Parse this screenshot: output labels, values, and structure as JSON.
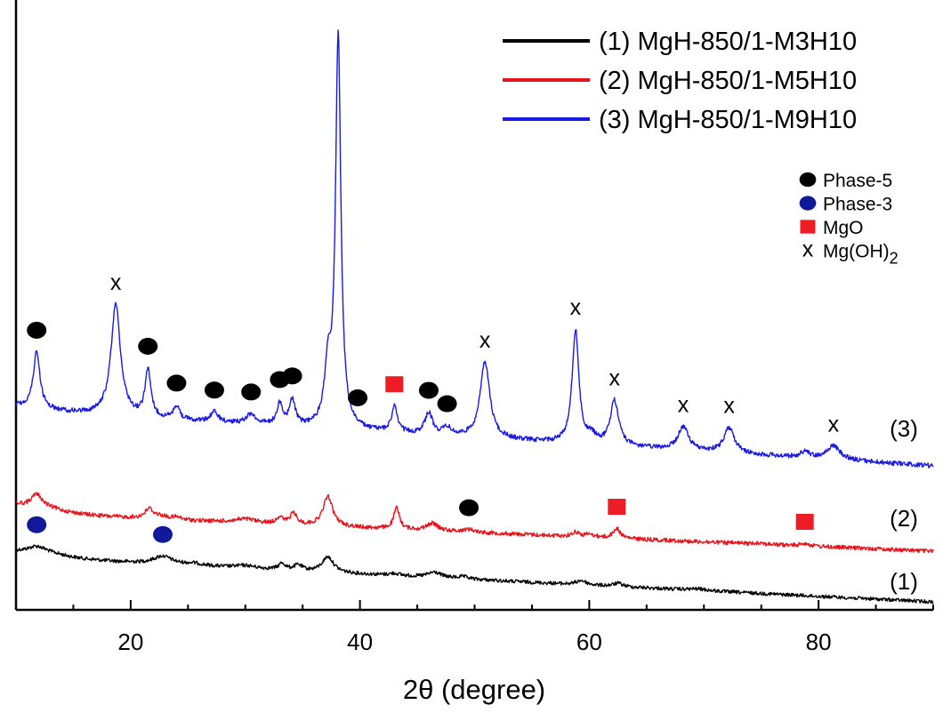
{
  "chart_data": {
    "type": "line",
    "title": "",
    "xlabel": "2θ (degree)",
    "ylabel": "",
    "xlim": [
      10,
      90
    ],
    "x_ticks": [
      20,
      40,
      60,
      80
    ],
    "x_minor_step": 5,
    "y_ticks_shown": false,
    "grid": false,
    "legend_placement": "top-right",
    "series": [
      {
        "name": "(1) MgH-850/1-M3H10",
        "label": "(1)",
        "color": "#000000",
        "peaks": [
          {
            "x": 11.8,
            "y": 6.5,
            "w": 1.0
          },
          {
            "x": 13.0,
            "y": 3.0,
            "w": 2.0
          },
          {
            "x": 22.8,
            "y": 7.5,
            "w": 1.0
          },
          {
            "x": 25.5,
            "y": 2.0,
            "w": 1.0
          },
          {
            "x": 30.0,
            "y": 2.5,
            "w": 1.2
          },
          {
            "x": 33.2,
            "y": 6.0,
            "w": 0.35
          },
          {
            "x": 34.6,
            "y": 5.0,
            "w": 0.45
          },
          {
            "x": 37.2,
            "y": 14.5,
            "w": 0.6
          },
          {
            "x": 43.0,
            "y": 2.0,
            "w": 0.6
          },
          {
            "x": 46.5,
            "y": 5.0,
            "w": 0.7
          },
          {
            "x": 49.0,
            "y": 2.0,
            "w": 0.6
          },
          {
            "x": 59.3,
            "y": 4.0,
            "w": 0.5
          },
          {
            "x": 62.5,
            "y": 3.0,
            "w": 0.5
          },
          {
            "x": 69.5,
            "y": 1.5,
            "w": 1.0
          }
        ]
      },
      {
        "name": "(2) MgH-850/1-M5H10",
        "label": "(2)",
        "color": "#e8131b",
        "peaks": [
          {
            "x": 11.8,
            "y": 12.0,
            "w": 0.6
          },
          {
            "x": 13.0,
            "y": 3.0,
            "w": 2.0
          },
          {
            "x": 21.6,
            "y": 8.0,
            "w": 0.4
          },
          {
            "x": 22.5,
            "y": 3.0,
            "w": 1.0
          },
          {
            "x": 24.0,
            "y": 2.0,
            "w": 0.4
          },
          {
            "x": 30.0,
            "y": 3.5,
            "w": 1.2
          },
          {
            "x": 33.0,
            "y": 6.0,
            "w": 0.35
          },
          {
            "x": 34.2,
            "y": 10.0,
            "w": 0.35
          },
          {
            "x": 37.2,
            "y": 27.0,
            "w": 0.5
          },
          {
            "x": 43.2,
            "y": 19.0,
            "w": 0.3
          },
          {
            "x": 46.3,
            "y": 6.5,
            "w": 0.6
          },
          {
            "x": 49.5,
            "y": 2.5,
            "w": 0.6
          },
          {
            "x": 58.8,
            "y": 4.0,
            "w": 0.35
          },
          {
            "x": 60.0,
            "y": 2.5,
            "w": 0.5
          },
          {
            "x": 62.4,
            "y": 9.0,
            "w": 0.35
          },
          {
            "x": 74.8,
            "y": 1.5,
            "w": 0.4
          },
          {
            "x": 78.8,
            "y": 2.5,
            "w": 0.45
          }
        ]
      },
      {
        "name": "(3) MgH-850/1-M9H10",
        "label": "(3)",
        "color": "#1a1ae6",
        "peaks": [
          {
            "x": 11.8,
            "y": 14.5,
            "w": 0.35
          },
          {
            "x": 18.7,
            "y": 28.5,
            "w": 0.5
          },
          {
            "x": 21.5,
            "y": 12.0,
            "w": 0.3
          },
          {
            "x": 24.0,
            "y": 3.5,
            "w": 0.3
          },
          {
            "x": 27.3,
            "y": 2.5,
            "w": 0.4
          },
          {
            "x": 30.5,
            "y": 2.5,
            "w": 0.5
          },
          {
            "x": 33.0,
            "y": 5.5,
            "w": 0.3
          },
          {
            "x": 34.1,
            "y": 6.5,
            "w": 0.3
          },
          {
            "x": 37.2,
            "y": 14.0,
            "w": 0.35
          },
          {
            "x": 38.1,
            "y": 100.0,
            "w": 0.28
          },
          {
            "x": 43.0,
            "y": 6.5,
            "w": 0.3
          },
          {
            "x": 46.0,
            "y": 5.5,
            "w": 0.4
          },
          {
            "x": 47.6,
            "y": 2.0,
            "w": 0.4
          },
          {
            "x": 50.9,
            "y": 19.5,
            "w": 0.5
          },
          {
            "x": 58.8,
            "y": 29.0,
            "w": 0.35
          },
          {
            "x": 60.2,
            "y": 2.0,
            "w": 0.4
          },
          {
            "x": 62.2,
            "y": 11.5,
            "w": 0.45
          },
          {
            "x": 68.2,
            "y": 6.0,
            "w": 0.55
          },
          {
            "x": 72.2,
            "y": 6.5,
            "w": 0.55
          },
          {
            "x": 78.8,
            "y": 1.5,
            "w": 0.5
          },
          {
            "x": 81.3,
            "y": 3.5,
            "w": 0.7
          }
        ]
      }
    ],
    "phase_legend": [
      {
        "symbol": "black-circle",
        "label": "Phase-5"
      },
      {
        "symbol": "blue-circle",
        "label": "Phase-3"
      },
      {
        "symbol": "red-square",
        "label": "MgO"
      },
      {
        "symbol": "x",
        "label": "Mg(OH)",
        "subscript": "2"
      }
    ],
    "annotations": [
      {
        "symbol": "black-circle",
        "series": 3,
        "x": 11.8
      },
      {
        "symbol": "black-circle",
        "series": 3,
        "x": 21.5
      },
      {
        "symbol": "black-circle",
        "series": 3,
        "x": 24.0
      },
      {
        "symbol": "black-circle",
        "series": 3,
        "x": 27.3
      },
      {
        "symbol": "black-circle",
        "series": 3,
        "x": 30.5
      },
      {
        "symbol": "black-circle",
        "series": 3,
        "x": 33.0
      },
      {
        "symbol": "black-circle",
        "series": 3,
        "x": 34.1
      },
      {
        "symbol": "black-circle",
        "series": 3,
        "x": 39.8
      },
      {
        "symbol": "black-circle",
        "series": 3,
        "x": 46.0
      },
      {
        "symbol": "black-circle",
        "series": 3,
        "x": 47.6
      },
      {
        "symbol": "black-circle",
        "series": 2,
        "x": 49.5
      },
      {
        "symbol": "x",
        "series": 3,
        "x": 18.7
      },
      {
        "symbol": "x",
        "series": 3,
        "x": 50.9
      },
      {
        "symbol": "x",
        "series": 3,
        "x": 58.8
      },
      {
        "symbol": "x",
        "series": 3,
        "x": 62.2
      },
      {
        "symbol": "x",
        "series": 3,
        "x": 68.2
      },
      {
        "symbol": "x",
        "series": 3,
        "x": 72.2
      },
      {
        "symbol": "x",
        "series": 3,
        "x": 81.3
      },
      {
        "symbol": "red-square",
        "series": 3,
        "x": 43.0
      },
      {
        "symbol": "red-square",
        "series": 2,
        "x": 62.4
      },
      {
        "symbol": "red-square",
        "series": 2,
        "x": 78.8
      },
      {
        "symbol": "blue-circle",
        "series": 1,
        "x": 11.8
      },
      {
        "symbol": "blue-circle",
        "series": 1,
        "x": 22.8
      }
    ],
    "colors": {
      "black_circle": "#000000",
      "blue_circle": "#10199a",
      "red_square": "#ee1c24"
    }
  }
}
